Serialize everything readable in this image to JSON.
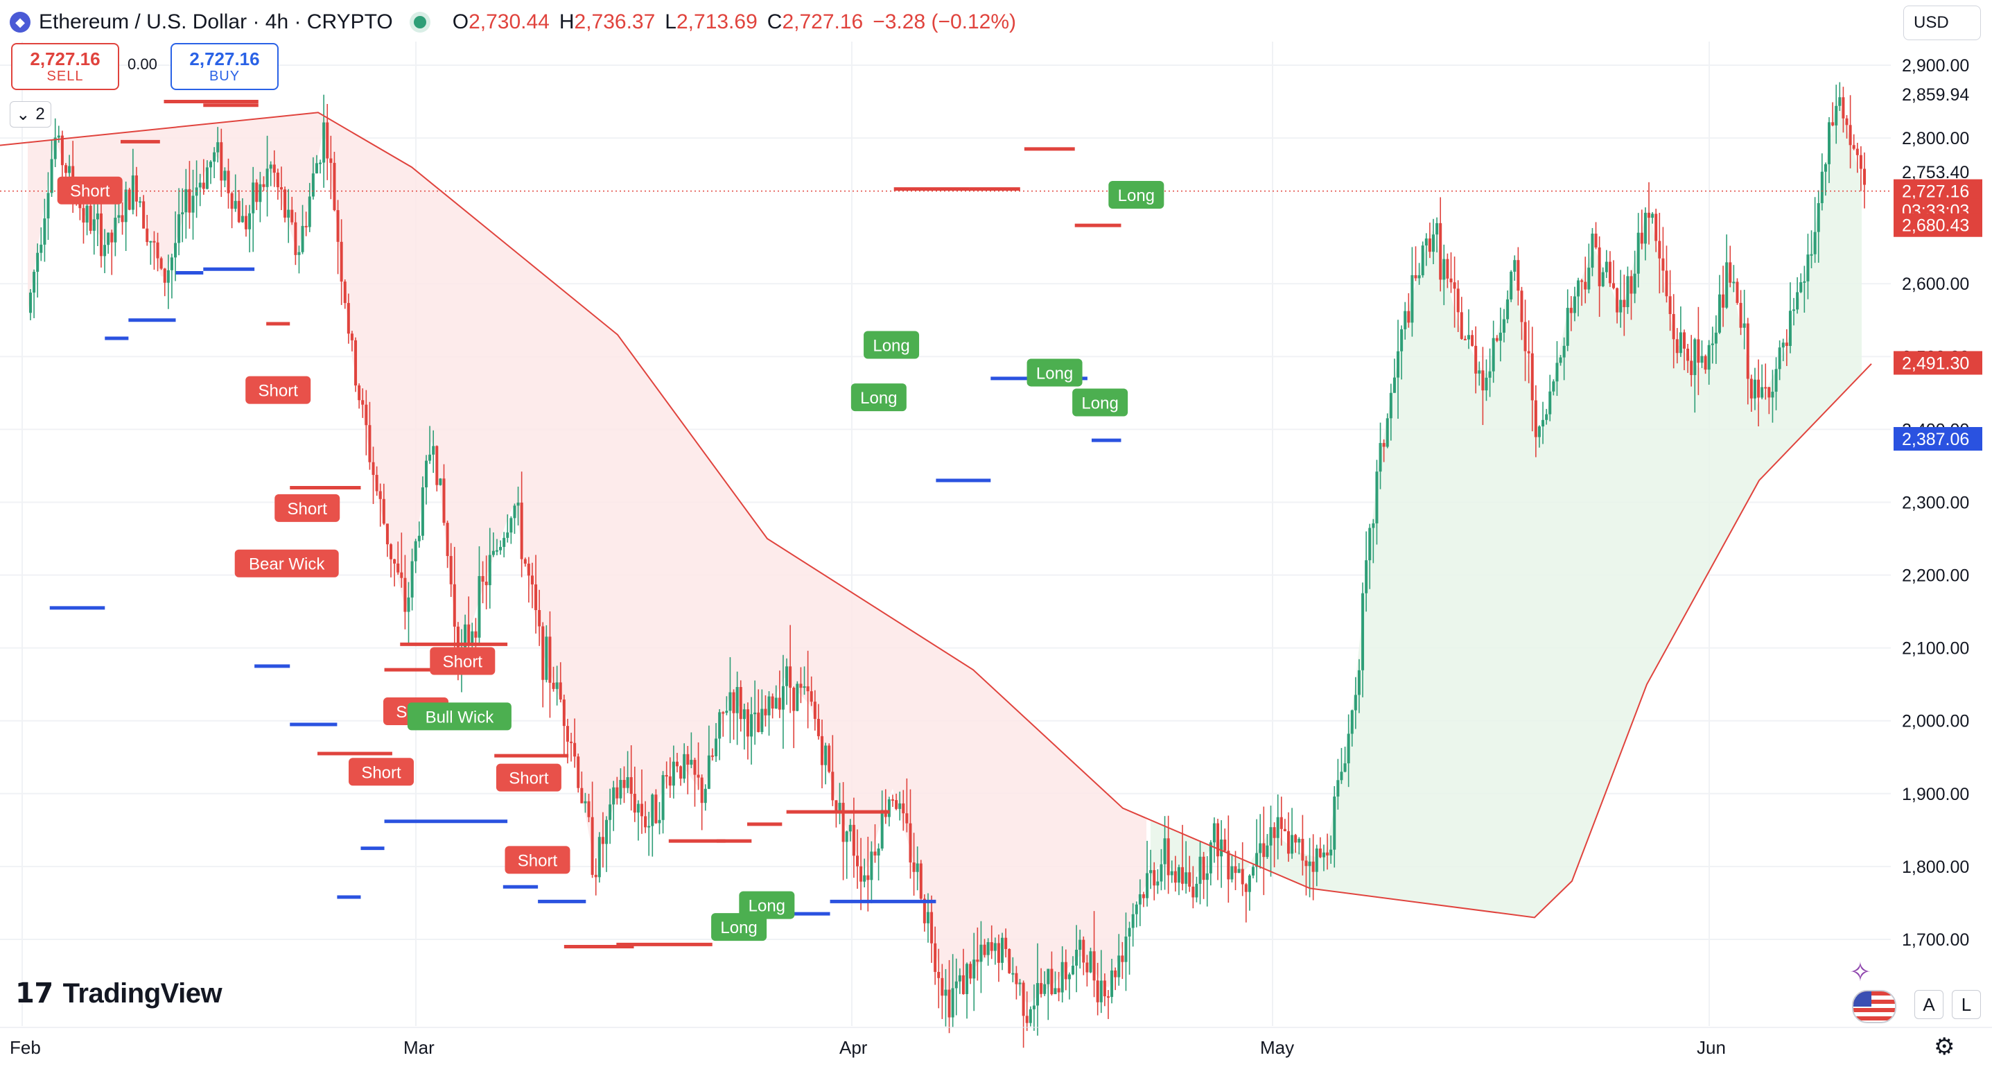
{
  "header": {
    "symbol": "Ethereum / U.S. Dollar · 4h · CRYPTO",
    "open_label": "O",
    "open": "2,730.44",
    "high_label": "H",
    "high": "2,736.37",
    "low_label": "L",
    "low": "2,713.69",
    "close_label": "C",
    "close": "2,727.16",
    "change": "−3.28 (−0.12%)"
  },
  "trade": {
    "sell_price": "2,727.16",
    "sell_label": "SELL",
    "spread": "0.00",
    "buy_price": "2,727.16",
    "buy_label": "BUY"
  },
  "indicator_counter": "2",
  "currency": "USD",
  "brand": "TradingView",
  "controls": {
    "auto": "A",
    "log": "L"
  },
  "colors": {
    "bear": "#e0433d",
    "bull": "#2e9e77",
    "support": "#2a52e0",
    "bear_zone": "#fde8e8",
    "bull_zone": "#e8f5e9",
    "label_bear": "#e8514a",
    "label_bull": "#4caf50"
  },
  "chart_data": {
    "type": "candlestick",
    "interval": "4h",
    "ylim": [
      1600,
      2960
    ],
    "y_ticks": [
      "2,900.00",
      "2,800.00",
      "2,600.00",
      "2,500.00",
      "2,400.00",
      "2,300.00",
      "2,200.00",
      "2,100.00",
      "2,000.00",
      "1,900.00",
      "1,800.00",
      "1,700.00"
    ],
    "y_tick_values": [
      2900,
      2800,
      2600,
      2500,
      2400,
      2300,
      2200,
      2100,
      2000,
      1900,
      1800,
      1700
    ],
    "x_ticks": [
      "Feb",
      "Mar",
      "Apr",
      "May",
      "Jun"
    ],
    "price_labels": [
      {
        "text": "2,859.94",
        "value": 2859.94,
        "kind": "plain"
      },
      {
        "text": "2,753.40",
        "value": 2753.4,
        "kind": "plain"
      },
      {
        "text": "2,727.16",
        "value": 2727.16,
        "kind": "last"
      },
      {
        "text": "03:33:03",
        "value": 2700.5,
        "kind": "countdown"
      },
      {
        "text": "2,680.43",
        "value": 2680.43,
        "kind": "resistance"
      },
      {
        "text": "2,491.30",
        "value": 2491.3,
        "kind": "ma"
      },
      {
        "text": "2,387.06",
        "value": 2387.06,
        "kind": "support"
      }
    ],
    "close_path": [
      [
        "Feb",
        2560
      ],
      [
        "Feb",
        2800
      ],
      [
        "Feb",
        2700
      ],
      [
        "Feb",
        2650
      ],
      [
        "Feb",
        2740
      ],
      [
        "Feb",
        2600
      ],
      [
        "Feb",
        2720
      ],
      [
        "Feb",
        2780
      ],
      [
        "Feb",
        2680
      ],
      [
        "Feb",
        2760
      ],
      [
        "Feb",
        2640
      ],
      [
        "Feb",
        2820
      ],
      [
        "Mar",
        2500
      ],
      [
        "Mar",
        2300
      ],
      [
        "Mar",
        2150
      ],
      [
        "Mar",
        2400
      ],
      [
        "Mar",
        2080
      ],
      [
        "Mar",
        2200
      ],
      [
        "Mar",
        2300
      ],
      [
        "Mar",
        2100
      ],
      [
        "Mar",
        2000
      ],
      [
        "Mar",
        1800
      ],
      [
        "Mar",
        1920
      ],
      [
        "Mar",
        1860
      ],
      [
        "Mar",
        1950
      ],
      [
        "Mar",
        1900
      ],
      [
        "Mar",
        2040
      ],
      [
        "Mar",
        1980
      ],
      [
        "Mar",
        2060
      ],
      [
        "Apr",
        2020
      ],
      [
        "Apr",
        1880
      ],
      [
        "Apr",
        1790
      ],
      [
        "Apr",
        1910
      ],
      [
        "Apr",
        1780
      ],
      [
        "Apr",
        1620
      ],
      [
        "Apr",
        1660
      ],
      [
        "Apr",
        1690
      ],
      [
        "Apr",
        1610
      ],
      [
        "Apr",
        1640
      ],
      [
        "Apr",
        1680
      ],
      [
        "Apr",
        1630
      ],
      [
        "Apr",
        1750
      ],
      [
        "May",
        1810
      ],
      [
        "May",
        1770
      ],
      [
        "May",
        1840
      ],
      [
        "May",
        1790
      ],
      [
        "May",
        1850
      ],
      [
        "May",
        1820
      ],
      [
        "May",
        1810
      ],
      [
        "May",
        2000
      ],
      [
        "May",
        2350
      ],
      [
        "May",
        2550
      ],
      [
        "May",
        2680
      ],
      [
        "May",
        2540
      ],
      [
        "May",
        2470
      ],
      [
        "May",
        2620
      ],
      [
        "May",
        2380
      ],
      [
        "May",
        2560
      ],
      [
        "May",
        2650
      ],
      [
        "Jun",
        2560
      ],
      [
        "Jun",
        2710
      ],
      [
        "Jun",
        2520
      ],
      [
        "Jun",
        2480
      ],
      [
        "Jun",
        2620
      ],
      [
        "Jun",
        2430
      ],
      [
        "Jun",
        2500
      ],
      [
        "Jun",
        2640
      ],
      [
        "Jun",
        2860
      ],
      [
        "Jun",
        2727
      ]
    ],
    "moving_average": [
      [
        0,
        2790
      ],
      [
        0.17,
        2835
      ],
      [
        0.22,
        2760
      ],
      [
        0.33,
        2530
      ],
      [
        0.41,
        2250
      ],
      [
        0.52,
        2070
      ],
      [
        0.6,
        1880
      ],
      [
        0.7,
        1770
      ],
      [
        0.82,
        1730
      ],
      [
        0.84,
        1780
      ],
      [
        0.88,
        2050
      ],
      [
        0.94,
        2330
      ],
      [
        1.0,
        2490
      ]
    ],
    "resistance_levels": [
      {
        "value": 2850,
        "from": 0.36,
        "to": 0.6
      },
      {
        "value": 2795,
        "from": 0.25,
        "to": 0.35
      },
      {
        "value": 2845,
        "from": 0.46,
        "to": 0.6
      },
      {
        "value": 2545,
        "from": 0.62,
        "to": 0.68
      },
      {
        "value": 2320,
        "from": 0.68,
        "to": 0.86
      },
      {
        "value": 2105,
        "from": 0.96,
        "to": 1.21
      },
      {
        "value": 2070,
        "from": 0.92,
        "to": 1.04
      },
      {
        "value": 1955,
        "from": 0.75,
        "to": 0.94
      },
      {
        "value": 1952,
        "from": 1.18,
        "to": 1.35
      },
      {
        "value": 1835,
        "from": 1.58,
        "to": 1.71
      },
      {
        "value": 1690,
        "from": 1.34,
        "to": 1.5
      },
      {
        "value": 1693,
        "from": 1.46,
        "to": 1.68
      },
      {
        "value": 1835,
        "from": 1.69,
        "to": 1.77
      },
      {
        "value": 1858,
        "from": 1.76,
        "to": 1.84
      },
      {
        "value": 1875,
        "from": 1.85,
        "to": 2.09
      },
      {
        "value": 2730,
        "from": 2.1,
        "to": 2.28
      },
      {
        "value": 2730,
        "from": 2.28,
        "to": 2.4
      },
      {
        "value": 2785,
        "from": 2.41,
        "to": 2.53
      },
      {
        "value": 2680,
        "from": 2.53,
        "to": 2.64
      }
    ],
    "support_levels": [
      {
        "value": 2155,
        "from": 0.07,
        "to": 0.21
      },
      {
        "value": 2525,
        "from": 0.21,
        "to": 0.27
      },
      {
        "value": 2550,
        "from": 0.27,
        "to": 0.39
      },
      {
        "value": 2615,
        "from": 0.39,
        "to": 0.46
      },
      {
        "value": 2620,
        "from": 0.46,
        "to": 0.59
      },
      {
        "value": 2075,
        "from": 0.59,
        "to": 0.68
      },
      {
        "value": 1995,
        "from": 0.68,
        "to": 0.8
      },
      {
        "value": 1758,
        "from": 0.8,
        "to": 0.86
      },
      {
        "value": 1825,
        "from": 0.86,
        "to": 0.92
      },
      {
        "value": 1862,
        "from": 0.92,
        "to": 1.21
      },
      {
        "value": 1772,
        "from": 1.2,
        "to": 1.28
      },
      {
        "value": 1752,
        "from": 1.28,
        "to": 1.39
      },
      {
        "value": 1735,
        "from": 1.83,
        "to": 1.95
      },
      {
        "value": 1752,
        "from": 1.95,
        "to": 2.2
      },
      {
        "value": 2330,
        "from": 2.2,
        "to": 2.33
      },
      {
        "value": 2470,
        "from": 2.33,
        "to": 2.56
      },
      {
        "value": 2385,
        "from": 2.57,
        "to": 2.64
      }
    ],
    "signals": [
      {
        "text": "Short",
        "kind": "bear",
        "xf": 0.172,
        "value": 2728
      },
      {
        "text": "Short",
        "kind": "bear",
        "xf": 0.65,
        "value": 2454
      },
      {
        "text": "Short",
        "kind": "bear",
        "xf": 0.724,
        "value": 2292
      },
      {
        "text": "Bear Wick",
        "kind": "bear",
        "xf": 0.672,
        "value": 2216
      },
      {
        "text": "Short",
        "kind": "bear",
        "xf": 1.107,
        "value": 2082
      },
      {
        "text": "Short",
        "kind": "bear",
        "xf": 1.0,
        "value": 2013
      },
      {
        "text": "Bull Wick",
        "kind": "bull",
        "xf": 1.1,
        "value": 2006
      },
      {
        "text": "Short",
        "kind": "bear",
        "xf": 0.912,
        "value": 1930
      },
      {
        "text": "Short",
        "kind": "bear",
        "xf": 1.259,
        "value": 1922
      },
      {
        "text": "Short",
        "kind": "bear",
        "xf": 1.279,
        "value": 1809
      },
      {
        "text": "Long",
        "kind": "bull",
        "xf": 1.741,
        "value": 1717
      },
      {
        "text": "Long",
        "kind": "bull",
        "xf": 1.805,
        "value": 1747
      },
      {
        "text": "Long",
        "kind": "bull",
        "xf": 2.064,
        "value": 2444
      },
      {
        "text": "Long",
        "kind": "bull",
        "xf": 2.094,
        "value": 2516
      },
      {
        "text": "Long",
        "kind": "bull",
        "xf": 2.482,
        "value": 2478
      },
      {
        "text": "Long",
        "kind": "bull",
        "xf": 2.59,
        "value": 2437
      },
      {
        "text": "Long",
        "kind": "bull",
        "xf": 2.676,
        "value": 2722
      }
    ]
  }
}
